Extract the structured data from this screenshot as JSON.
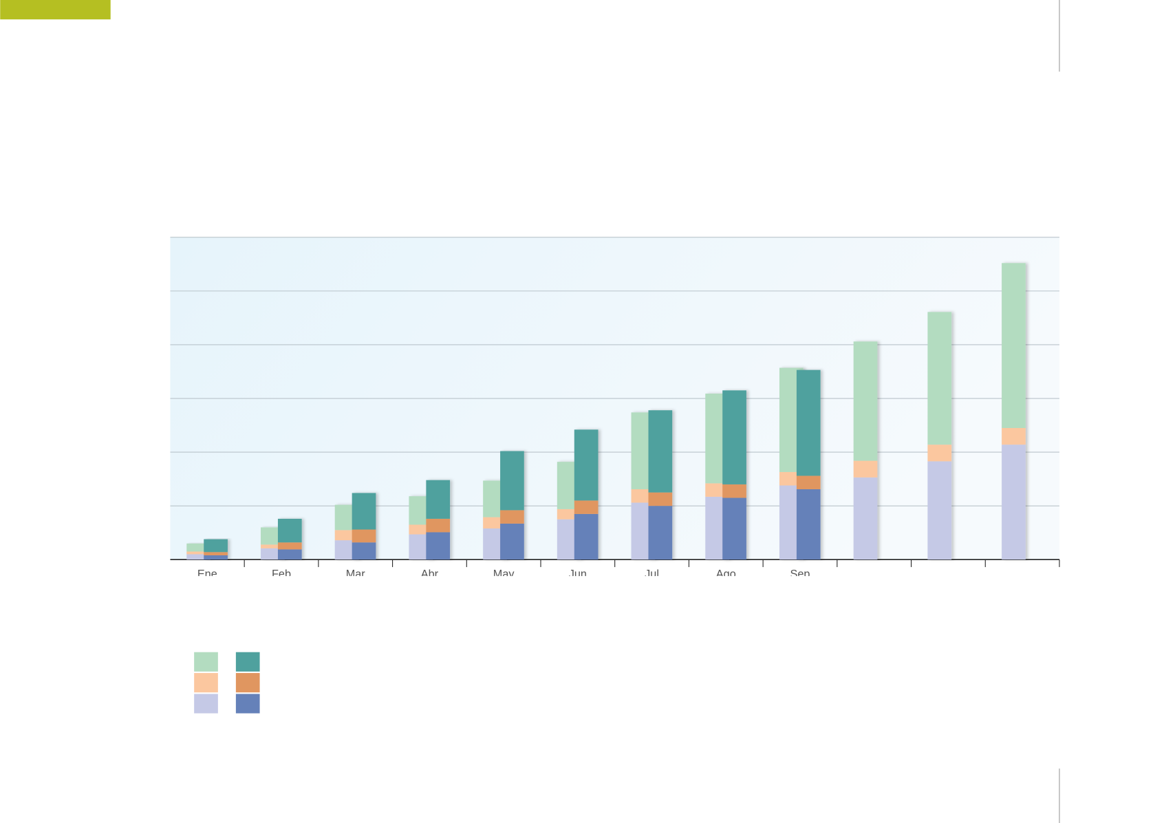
{
  "chart_data": {
    "type": "bar",
    "categories": [
      "Ene",
      "Feb",
      "Mar",
      "Abr",
      "May",
      "Jun",
      "Jul",
      "Ago",
      "Sep",
      null,
      null,
      null
    ],
    "series": [
      {
        "color": "#c5c9e6",
        "stack": 0,
        "values": [
          0.1,
          0.21,
          0.36,
          0.47,
          0.58,
          0.75,
          1.06,
          1.17,
          1.38,
          1.53,
          1.83,
          2.14
        ]
      },
      {
        "color": "#fbc79f",
        "stack": 0,
        "values": [
          0.05,
          0.07,
          0.19,
          0.18,
          0.21,
          0.19,
          0.25,
          0.25,
          0.25,
          0.31,
          0.31,
          0.31
        ]
      },
      {
        "color": "#b3dcc0",
        "stack": 0,
        "values": [
          0.15,
          0.32,
          0.47,
          0.53,
          0.68,
          0.88,
          1.43,
          1.67,
          1.94,
          2.22,
          2.47,
          3.07
        ]
      },
      {
        "color": "#6581b9",
        "stack": 1,
        "values": [
          0.08,
          0.19,
          0.32,
          0.51,
          0.67,
          0.85,
          1.0,
          1.15,
          1.31,
          null,
          null,
          null
        ]
      },
      {
        "color": "#e09660",
        "stack": 1,
        "values": [
          0.06,
          0.13,
          0.24,
          0.25,
          0.25,
          0.25,
          0.25,
          0.25,
          0.25,
          null,
          null,
          null
        ]
      },
      {
        "color": "#4fa19e",
        "stack": 1,
        "values": [
          0.24,
          0.44,
          0.68,
          0.72,
          1.1,
          1.32,
          1.53,
          1.75,
          1.97,
          null,
          null,
          null
        ]
      }
    ],
    "ylim": [
      0,
      6
    ],
    "yticks": [
      0,
      1,
      2,
      3,
      4,
      5,
      6
    ],
    "grid": true
  }
}
